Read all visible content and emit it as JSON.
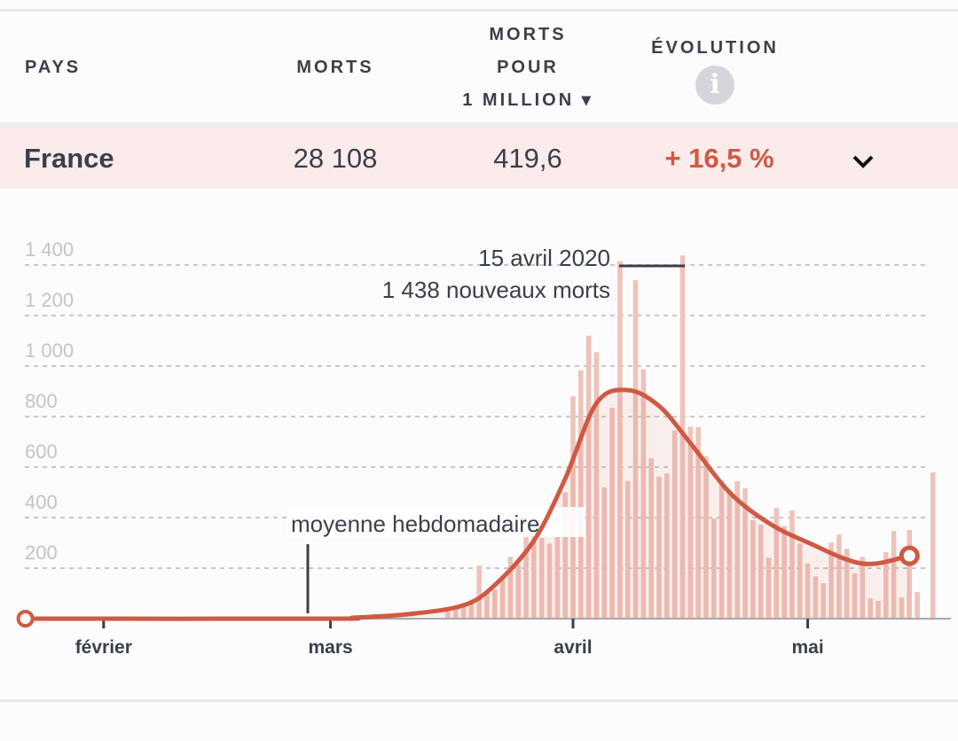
{
  "header": {
    "pays": "PAYS",
    "morts": "MORTS",
    "per_million_1": "MORTS",
    "per_million_2": "POUR",
    "per_million_3": "1 MILLION ▾",
    "evolution": "ÉVOLUTION",
    "info_icon": "i"
  },
  "row": {
    "country": "France",
    "deaths": "28 108",
    "per_million": "419,6",
    "evolution": "+ 16,5 %",
    "expand_icon": "chevron-down-icon"
  },
  "colors": {
    "accent": "#cf5a43",
    "bars": "#efc2ba",
    "row_bg": "#fbeceb"
  },
  "chart_data": {
    "type": "bar",
    "title": "",
    "xlabel": "",
    "ylabel": "",
    "ylim": [
      0,
      1400
    ],
    "yticks": [
      200,
      400,
      600,
      800,
      1000,
      1200,
      1400
    ],
    "ytick_labels": [
      "200",
      "400",
      "600",
      "800",
      "1 000",
      "1 200",
      "1 400"
    ],
    "xticks": [
      {
        "date": "2020-02-01",
        "label": "février"
      },
      {
        "date": "2020-03-01",
        "label": "mars"
      },
      {
        "date": "2020-04-01",
        "label": "avril"
      },
      {
        "date": "2020-05-01",
        "label": "mai"
      }
    ],
    "x_start": "2020-01-22",
    "bars_start": "2020-03-16",
    "daily_deaths": [
      28,
      40,
      50,
      63,
      210,
      108,
      115,
      157,
      245,
      215,
      326,
      325,
      320,
      297,
      325,
      500,
      880,
      983,
      1120,
      1055,
      520,
      835,
      1415,
      545,
      1340,
      987,
      635,
      562,
      575,
      745,
      1438,
      760,
      758,
      642,
      396,
      547,
      508,
      544,
      516,
      390,
      372,
      242,
      438,
      367,
      428,
      298,
      218,
      168,
      140,
      301,
      333,
      277,
      180,
      245,
      81,
      70,
      263,
      347,
      84,
      351,
      105,
      0,
      579
    ],
    "weekly_average": {
      "series_name": "moyenne hebdomadaire",
      "points": [
        [
          "2020-01-22",
          0
        ],
        [
          "2020-03-01",
          0
        ],
        [
          "2020-03-04",
          4
        ],
        [
          "2020-03-11",
          18
        ],
        [
          "2020-03-18",
          53
        ],
        [
          "2020-03-22",
          133
        ],
        [
          "2020-03-27",
          309
        ],
        [
          "2020-03-31",
          554
        ],
        [
          "2020-04-04",
          853
        ],
        [
          "2020-04-08",
          905
        ],
        [
          "2020-04-12",
          842
        ],
        [
          "2020-04-16",
          695
        ],
        [
          "2020-04-21",
          500
        ],
        [
          "2020-04-26",
          379
        ],
        [
          "2020-05-01",
          302
        ],
        [
          "2020-05-08",
          218
        ],
        [
          "2020-05-14",
          249
        ]
      ]
    },
    "annotations": {
      "highlight_date": "15 avril 2020",
      "highlight_value": "1 438 nouveaux morts",
      "average_label": "moyenne hebdomadaire"
    }
  }
}
